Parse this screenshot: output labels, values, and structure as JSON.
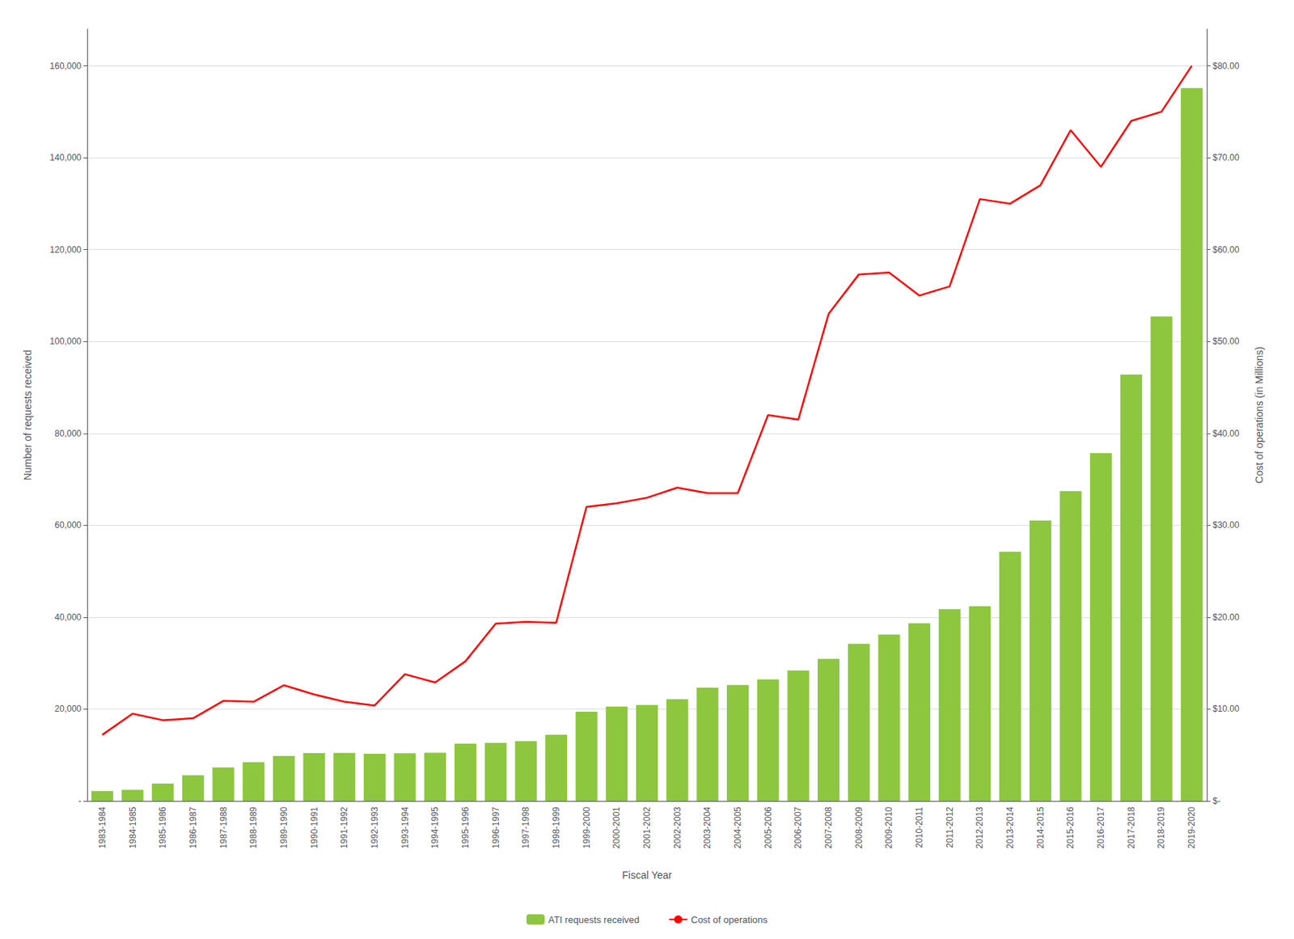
{
  "chart_data": {
    "type": "bar",
    "x_label": "Fiscal Year",
    "y_label": "Number of requests received",
    "y2_label": "Cost of operations (in Millions)",
    "categories": [
      "1983-1984",
      "1984-1985",
      "1985-1986",
      "1986-1987",
      "1987-1988",
      "1988-1989",
      "1989-1990",
      "1990-1991",
      "1991-1992",
      "1992-1993",
      "1993-1994",
      "1994-1995",
      "1995-1996",
      "1996-1997",
      "1997-1998",
      "1998-1999",
      "1999-2000",
      "2000-2001",
      "2001-2002",
      "2002-2003",
      "2003-2004",
      "2004-2005",
      "2005-2006",
      "2006-2007",
      "2007-2008",
      "2008-2009",
      "2009-2010",
      "2010-2011",
      "2011-2012",
      "2012-2013",
      "2013-2014",
      "2014-2015",
      "2015-2016",
      "2016-2017",
      "2017-2018",
      "2018-2019",
      "2019-2020"
    ],
    "series": [
      {
        "name": "ATI requests received",
        "type": "bar",
        "color": "#8DC63F",
        "values": [
          2178,
          2441,
          3805,
          5611,
          7327,
          8438,
          9780,
          10430,
          10455,
          10280,
          10410,
          10498,
          12499,
          12655,
          13048,
          14440,
          19432,
          20564,
          20882,
          22147,
          24670,
          25261,
          26471,
          28413,
          30951,
          34199,
          36221,
          38694,
          41752,
          42408,
          54263,
          61039,
          67462,
          75718,
          92793,
          105474,
          155172
        ]
      },
      {
        "name": "Cost of operations",
        "type": "line",
        "color": "#FF0000",
        "axis": "y2",
        "values": [
          7.2,
          9.5,
          8.8,
          9.0,
          10.9,
          10.8,
          12.6,
          11.6,
          10.8,
          10.4,
          13.8,
          12.9,
          15.2,
          19.3,
          19.5,
          19.4,
          32.0,
          32.4,
          33.0,
          34.1,
          33.5,
          33.5,
          42.0,
          41.5,
          53.0,
          57.3,
          57.5,
          55.0,
          56.0,
          65.5,
          65.0,
          67.0,
          73.0,
          69.0,
          74.0,
          75.0,
          80.0
        ]
      }
    ],
    "ylim": [
      0,
      168000
    ],
    "yticks": [
      {
        "value": 0,
        "label": "-"
      },
      {
        "value": 20000,
        "label": "20,000"
      },
      {
        "value": 40000,
        "label": "40,000"
      },
      {
        "value": 60000,
        "label": "60,000"
      },
      {
        "value": 80000,
        "label": "80,000"
      },
      {
        "value": 100000,
        "label": "100,000"
      },
      {
        "value": 120000,
        "label": "120,000"
      },
      {
        "value": 140000,
        "label": "140,000"
      },
      {
        "value": 160000,
        "label": "160,000"
      }
    ],
    "y2lim": [
      0,
      84
    ],
    "y2ticks": [
      {
        "value": 0,
        "label": "$-"
      },
      {
        "value": 10,
        "label": "$10.00"
      },
      {
        "value": 20,
        "label": "$20.00"
      },
      {
        "value": 30,
        "label": "$30.00"
      },
      {
        "value": 40,
        "label": "$40.00"
      },
      {
        "value": 50,
        "label": "$50.00"
      },
      {
        "value": 60,
        "label": "$60.00"
      },
      {
        "value": 70,
        "label": "$70.00"
      },
      {
        "value": 80,
        "label": "$80.00"
      }
    ],
    "grid": true,
    "legend": "bottom"
  }
}
